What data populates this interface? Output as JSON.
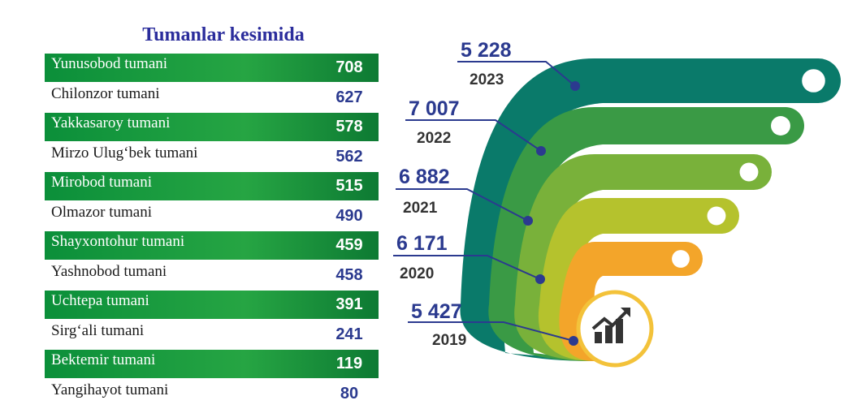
{
  "title": "Tumanlar kesimida",
  "districts": [
    {
      "name": "Yunusobod  tumani",
      "value": "708"
    },
    {
      "name": "Chilonzor  tumani",
      "value": "627"
    },
    {
      "name": "Yakkasaroy  tumani",
      "value": "578"
    },
    {
      "name": "Mirzo  Ulug‘bek  tumani",
      "value": "562"
    },
    {
      "name": "Mirobod  tumani",
      "value": "515"
    },
    {
      "name": "Olmazor  tumani",
      "value": "490"
    },
    {
      "name": "Shayxontohur  tumani",
      "value": "459"
    },
    {
      "name": "Yashnobod  tumani",
      "value": "458"
    },
    {
      "name": "Uchtepa  tumani",
      "value": "391"
    },
    {
      "name": "Sirg‘ali  tumani",
      "value": "241"
    },
    {
      "name": "Bektemir  tumani",
      "value": "119"
    },
    {
      "name": "Yangihayot  tumani",
      "value": "80"
    }
  ],
  "chart_data": {
    "type": "bar",
    "categories": [
      "2023",
      "2022",
      "2021",
      "2020",
      "2019"
    ],
    "values": [
      5228,
      7007,
      6882,
      6171,
      5427
    ],
    "value_labels": [
      "5 228",
      "7 007",
      "6 882",
      "6 171",
      "5 427"
    ],
    "colors": [
      "#0a7a6a",
      "#3a9a45",
      "#79b13a",
      "#b5c22d",
      "#f3a52a"
    ]
  },
  "icon": "growth-chart-icon"
}
